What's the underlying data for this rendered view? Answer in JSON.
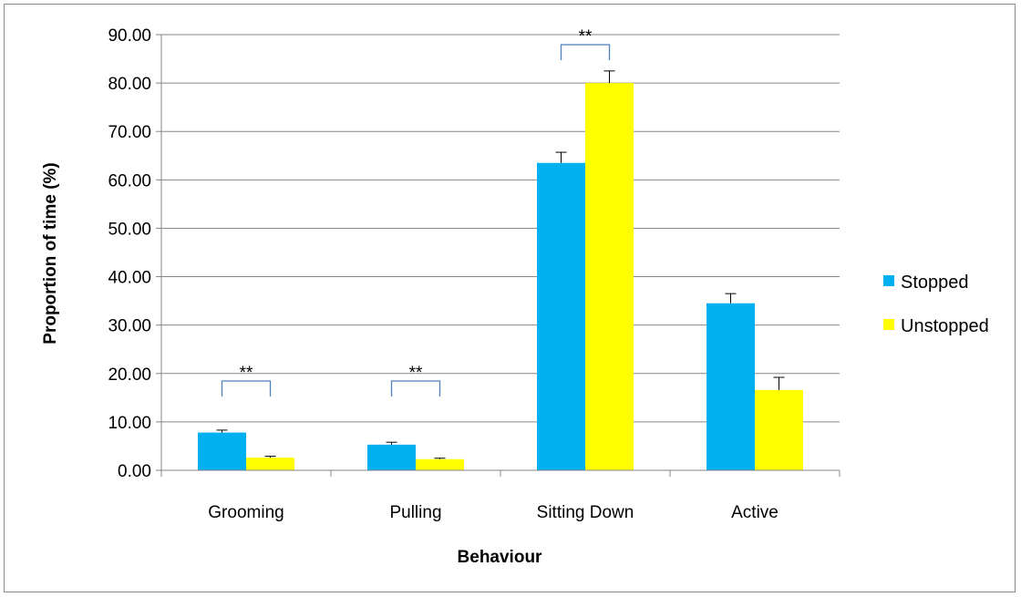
{
  "chart_data": {
    "type": "bar",
    "categories": [
      "Grooming",
      "Pulling",
      "Sitting Down",
      "Active"
    ],
    "series": [
      {
        "name": "Stopped",
        "color": "#00b0f0",
        "values": [
          7.8,
          5.3,
          63.5,
          34.5
        ],
        "errors": [
          0.5,
          0.5,
          2.2,
          2.0
        ]
      },
      {
        "name": "Unstopped",
        "color": "#ffff00",
        "values": [
          2.6,
          2.3,
          80.0,
          16.6
        ],
        "errors": [
          0.3,
          0.2,
          2.5,
          2.6
        ]
      }
    ],
    "xlabel": "Behaviour",
    "ylabel": "Proportion of time (%)",
    "ylim": [
      0,
      90
    ],
    "yticks": [
      0,
      10,
      20,
      30,
      40,
      50,
      60,
      70,
      80,
      90
    ],
    "ytick_labels": [
      "0.00",
      "10.00",
      "20.00",
      "30.00",
      "40.00",
      "50.00",
      "60.00",
      "70.00",
      "80.00",
      "90.00"
    ],
    "grid": true,
    "legend_position": "right",
    "significance": [
      {
        "category_index": 0,
        "label": "**"
      },
      {
        "category_index": 1,
        "label": "**"
      },
      {
        "category_index": 2,
        "label": "**"
      }
    ],
    "bracket_color": "#4f81bd",
    "gridline_color": "#868686"
  }
}
